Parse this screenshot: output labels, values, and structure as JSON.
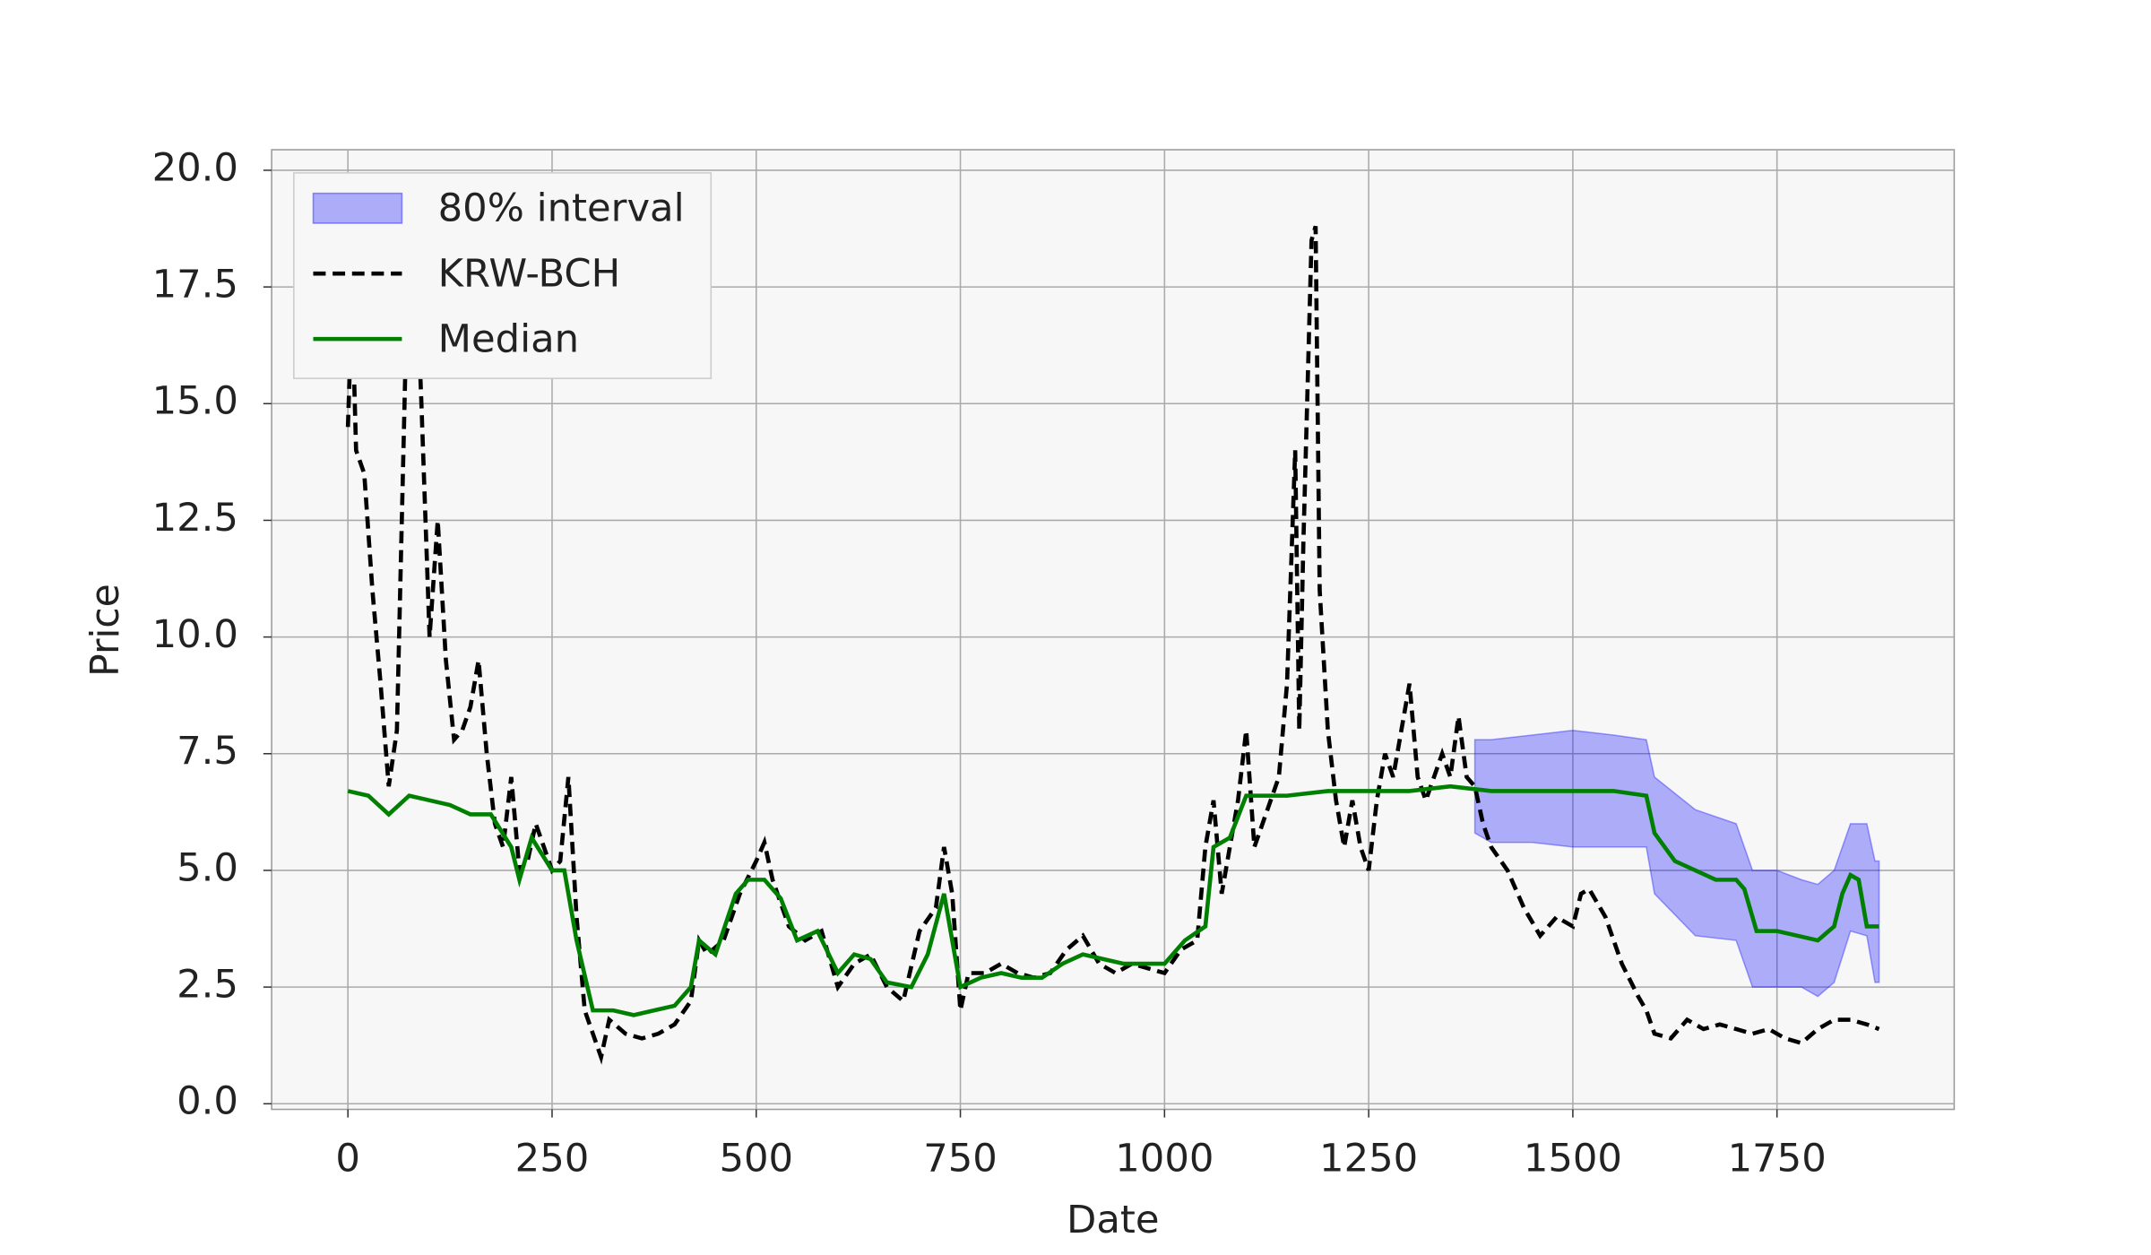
{
  "chart_data": {
    "type": "line",
    "xlabel": "Date",
    "ylabel": "Price",
    "xlim": [
      -93.4,
      1967
    ],
    "ylim": [
      -0.12,
      20.44
    ],
    "xticks": [
      0,
      250,
      500,
      750,
      1000,
      1250,
      1500,
      1750
    ],
    "yticks": [
      {
        "value": 0,
        "label": "0.0"
      },
      2.5,
      {
        "value": 5,
        "label": "5.0"
      },
      7.5,
      {
        "value": 10,
        "label": "10.0"
      },
      12.5,
      {
        "value": 15,
        "label": "15.0"
      },
      17.5,
      {
        "value": 20,
        "label": "20.0"
      }
    ],
    "grid": true,
    "legend": "upper left",
    "series": [
      {
        "name": "80% interval",
        "kind": "band",
        "color": "#0000ff",
        "x": [
          1380,
          1400,
          1450,
          1500,
          1550,
          1590,
          1600,
          1650,
          1700,
          1720,
          1750,
          1780,
          1800,
          1820,
          1840,
          1860,
          1870,
          1875
        ],
        "lower": [
          5.8,
          5.6,
          5.6,
          5.5,
          5.5,
          5.5,
          4.5,
          3.6,
          3.5,
          2.5,
          2.5,
          2.5,
          2.3,
          2.6,
          3.7,
          3.6,
          2.6,
          2.6
        ],
        "upper": [
          7.8,
          7.8,
          7.9,
          8.0,
          7.9,
          7.8,
          7.0,
          6.3,
          6.0,
          5.0,
          5.0,
          4.8,
          4.7,
          5.0,
          6.0,
          6.0,
          5.2,
          5.2
        ]
      },
      {
        "name": "KRW-BCH",
        "kind": "dashed",
        "color": "#000000",
        "x": [
          0,
          5,
          10,
          20,
          30,
          40,
          50,
          60,
          70,
          80,
          90,
          100,
          110,
          120,
          130,
          140,
          150,
          160,
          170,
          180,
          190,
          200,
          210,
          220,
          230,
          240,
          250,
          260,
          270,
          280,
          290,
          300,
          310,
          320,
          340,
          360,
          380,
          400,
          420,
          430,
          440,
          460,
          480,
          500,
          510,
          520,
          540,
          560,
          580,
          600,
          620,
          640,
          660,
          680,
          700,
          720,
          730,
          740,
          750,
          760,
          780,
          800,
          820,
          840,
          860,
          880,
          900,
          920,
          940,
          960,
          980,
          1000,
          1020,
          1040,
          1050,
          1060,
          1070,
          1080,
          1090,
          1100,
          1110,
          1120,
          1140,
          1150,
          1160,
          1165,
          1170,
          1180,
          1185,
          1190,
          1200,
          1210,
          1220,
          1230,
          1240,
          1250,
          1260,
          1270,
          1280,
          1290,
          1300,
          1310,
          1320,
          1340,
          1350,
          1360,
          1370,
          1380,
          1390,
          1400,
          1420,
          1440,
          1460,
          1480,
          1500,
          1510,
          1520,
          1540,
          1560,
          1580,
          1590,
          1600,
          1620,
          1640,
          1660,
          1680,
          1700,
          1720,
          1740,
          1760,
          1780,
          1800,
          1820,
          1840,
          1860,
          1875
        ],
        "values": [
          14.5,
          17.2,
          14,
          13.5,
          11,
          9,
          6.8,
          8,
          15.5,
          19.5,
          15,
          10,
          12.5,
          9.5,
          7.8,
          8,
          8.5,
          9.5,
          7.5,
          6,
          5.5,
          7,
          5,
          5.2,
          6,
          5.5,
          5.0,
          5.2,
          7,
          4,
          2,
          1.5,
          1,
          1.8,
          1.5,
          1.4,
          1.5,
          1.7,
          2.2,
          3.5,
          3.2,
          3.5,
          4.5,
          5.2,
          5.6,
          4.8,
          3.8,
          3.5,
          3.7,
          2.5,
          3.0,
          3.2,
          2.5,
          2.2,
          3.7,
          4.2,
          5.5,
          4.5,
          2.0,
          2.8,
          2.8,
          3.0,
          2.8,
          2.7,
          2.8,
          3.3,
          3.6,
          3.0,
          2.8,
          3.0,
          2.9,
          2.8,
          3.3,
          3.5,
          5.5,
          6.5,
          4.5,
          5.5,
          6.5,
          8,
          5.5,
          6,
          7,
          9,
          14,
          8,
          12,
          18.5,
          18.8,
          11,
          8,
          6.5,
          5.5,
          6.5,
          5.5,
          5.0,
          6.5,
          7.5,
          7.0,
          8.0,
          9.0,
          7.0,
          6.5,
          7.5,
          7.0,
          8.3,
          7.0,
          6.8,
          6.0,
          5.5,
          5.0,
          4.2,
          3.6,
          4.0,
          3.8,
          4.5,
          4.6,
          4.0,
          3.0,
          2.3,
          2.0,
          1.5,
          1.4,
          1.8,
          1.6,
          1.7,
          1.6,
          1.5,
          1.6,
          1.4,
          1.3,
          1.6,
          1.8,
          1.8,
          1.7,
          1.6
        ]
      },
      {
        "name": "Median",
        "kind": "solid",
        "color": "#008000",
        "x": [
          0,
          25,
          50,
          75,
          100,
          125,
          150,
          175,
          200,
          210,
          225,
          250,
          265,
          280,
          300,
          325,
          350,
          375,
          400,
          420,
          430,
          450,
          475,
          490,
          510,
          530,
          550,
          575,
          600,
          620,
          640,
          660,
          690,
          710,
          730,
          750,
          775,
          800,
          825,
          850,
          875,
          900,
          925,
          950,
          975,
          1000,
          1025,
          1050,
          1060,
          1080,
          1100,
          1150,
          1200,
          1250,
          1300,
          1350,
          1400,
          1450,
          1500,
          1550,
          1590,
          1600,
          1625,
          1650,
          1675,
          1700,
          1710,
          1725,
          1750,
          1775,
          1800,
          1820,
          1830,
          1840,
          1850,
          1860,
          1875
        ],
        "values": [
          6.7,
          6.6,
          6.2,
          6.6,
          6.5,
          6.4,
          6.2,
          6.2,
          5.5,
          4.8,
          5.7,
          5.0,
          5.0,
          3.5,
          2.0,
          2.0,
          1.9,
          2.0,
          2.1,
          2.5,
          3.5,
          3.2,
          4.5,
          4.8,
          4.8,
          4.4,
          3.5,
          3.7,
          2.8,
          3.2,
          3.1,
          2.6,
          2.5,
          3.2,
          4.5,
          2.5,
          2.7,
          2.8,
          2.7,
          2.7,
          3.0,
          3.2,
          3.1,
          3.0,
          3.0,
          3.0,
          3.5,
          3.8,
          5.5,
          5.7,
          6.6,
          6.6,
          6.7,
          6.7,
          6.7,
          6.8,
          6.7,
          6.7,
          6.7,
          6.7,
          6.6,
          5.8,
          5.2,
          5.0,
          4.8,
          4.8,
          4.6,
          3.7,
          3.7,
          3.6,
          3.5,
          3.8,
          4.5,
          4.9,
          4.8,
          3.8,
          3.8
        ]
      }
    ]
  }
}
